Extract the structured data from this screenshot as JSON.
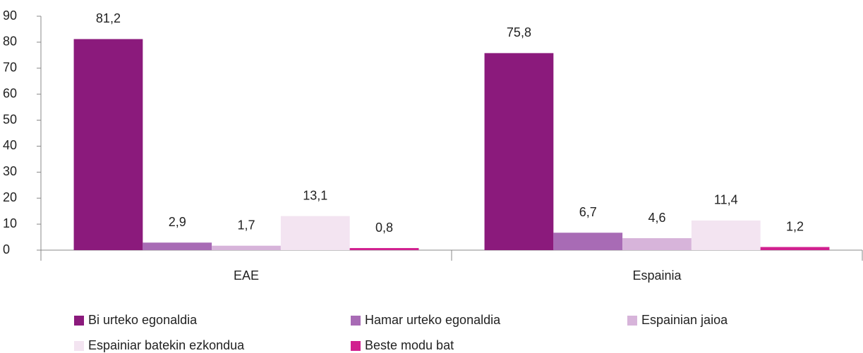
{
  "chart_data": {
    "type": "bar",
    "categories": [
      "EAE",
      "Espainia"
    ],
    "series": [
      {
        "name": "Bi urteko egonaldia",
        "color": "#8b1a7c",
        "values": [
          81.2,
          75.8
        ],
        "value_labels": [
          "81,2",
          "75,8"
        ]
      },
      {
        "name": "Hamar urteko egonaldia",
        "color": "#a86bb5",
        "values": [
          2.9,
          6.7
        ],
        "value_labels": [
          "2,9",
          "6,7"
        ]
      },
      {
        "name": "Espainian jaioa",
        "color": "#d7b4da",
        "values": [
          1.7,
          4.6
        ],
        "value_labels": [
          "1,7",
          "4,6"
        ]
      },
      {
        "name": "Espainiar batekin ezkondua",
        "color": "#f3e4f1",
        "values": [
          13.1,
          11.4
        ],
        "value_labels": [
          "13,1",
          "11,4"
        ]
      },
      {
        "name": "Beste modu bat",
        "color": "#d1208f",
        "values": [
          0.8,
          1.2
        ],
        "value_labels": [
          "0,8",
          "1,2"
        ]
      }
    ],
    "ylim": [
      0,
      90
    ],
    "yticks": [
      0,
      10,
      20,
      30,
      40,
      50,
      60,
      70,
      80,
      90
    ],
    "grid": false,
    "legend": "bottom"
  }
}
